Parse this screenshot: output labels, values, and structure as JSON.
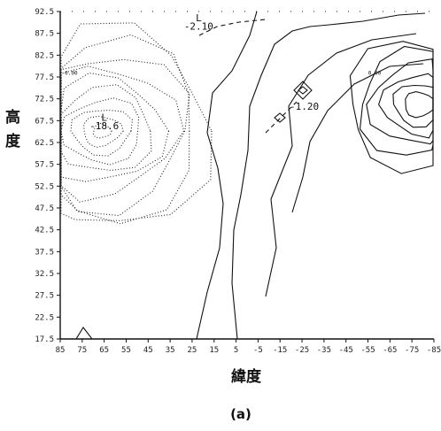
{
  "chart_data": {
    "type": "contour",
    "xlabel": "緯度",
    "ylabel": "高度",
    "panel_label": "(a)",
    "x_ticks": [
      "85",
      "75",
      "65",
      "55",
      "45",
      "35",
      "25",
      "15",
      "5",
      "-5",
      "-15",
      "-25",
      "-35",
      "-45",
      "-55",
      "-65",
      "-75",
      "-85"
    ],
    "y_ticks": [
      "92.5",
      "87.5",
      "82.5",
      "77.5",
      "72.5",
      "67.5",
      "62.5",
      "57.5",
      "52.5",
      "47.5",
      "42.5",
      "37.5",
      "32.5",
      "27.5",
      "22.5",
      "17.5"
    ],
    "xlim": [
      85,
      -85
    ],
    "ylim": [
      17.5,
      92.5
    ],
    "annotations": [
      {
        "text": "L",
        "x": 65,
        "y": 67.5
      },
      {
        "text": "-18.6",
        "x": 65,
        "y": 65.5
      },
      {
        "text": "L",
        "x": 22,
        "y": 90.3
      },
      {
        "text": "-2.10",
        "x": 22,
        "y": 88.3
      },
      {
        "text": "-1.20",
        "x": -26,
        "y": 70.0
      },
      {
        "text": "0.00",
        "x": 80,
        "y": 78.0
      },
      {
        "text": "0.00",
        "x": -58,
        "y": 78.0
      }
    ]
  }
}
